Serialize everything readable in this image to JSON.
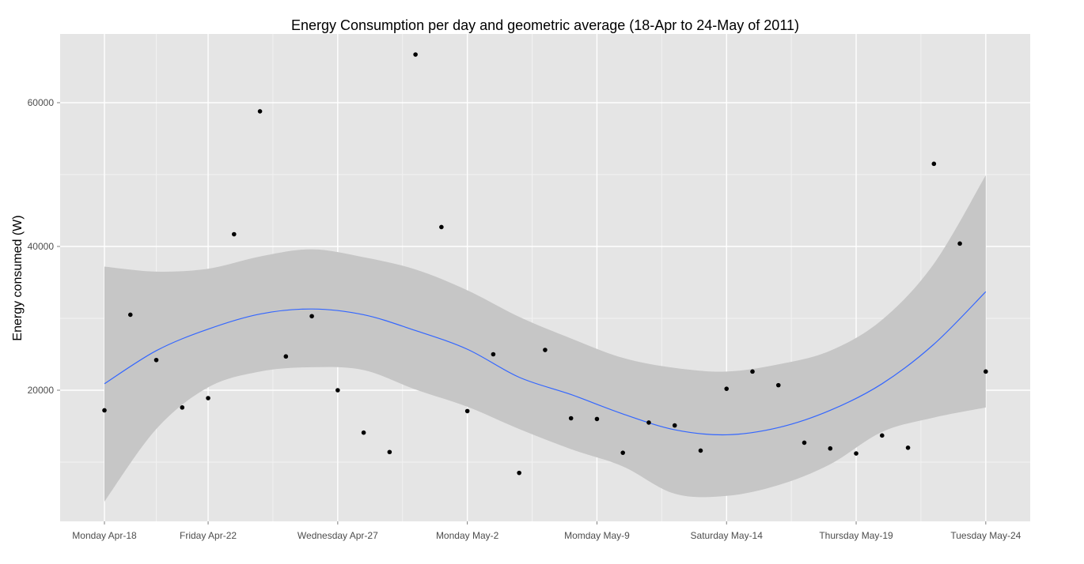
{
  "chart_data": {
    "type": "scatter",
    "title": "Energy Consumption per day and geometric average (18-Apr to 24-May of 2011)",
    "xlabel": "",
    "ylabel": "Energy consumed (W)",
    "x_tick_labels": [
      "Monday Apr-18",
      "Friday Apr-22",
      "Wednesday Apr-27",
      "Monday May-2",
      "Momday May-9",
      "Saturday May-14",
      "Thursday May-19",
      "Tuesday May-24"
    ],
    "x_tick_days": [
      0,
      4,
      9,
      14,
      19,
      24,
      29,
      34
    ],
    "y_tick_labels": [
      "20000",
      "40000",
      "60000"
    ],
    "y_ticks": [
      20000,
      40000,
      60000
    ],
    "ylim": [
      3000,
      69000
    ],
    "xlim": [
      -1.7,
      35.7
    ],
    "grid": true,
    "series": [
      {
        "type": "points",
        "values": [
          17200,
          30500,
          24200,
          17600,
          18900,
          41700,
          58800,
          24700,
          30300,
          20000,
          14100,
          11400,
          66700,
          42700,
          17100,
          25000,
          8500,
          25600,
          16100,
          16000,
          11300,
          15500,
          15100,
          11600,
          20200,
          22600,
          20700,
          12700,
          11900,
          11200,
          13700,
          12000,
          51500,
          40400,
          22600
        ]
      },
      {
        "type": "smooth",
        "x": [
          0,
          2,
          4,
          6,
          8,
          10,
          12,
          14,
          16,
          18,
          20,
          22,
          24,
          26,
          28,
          30,
          32,
          34
        ],
        "values": [
          20900,
          25500,
          28500,
          30600,
          31300,
          30500,
          28300,
          25700,
          21800,
          19400,
          16700,
          14500,
          13800,
          14800,
          17200,
          20900,
          26400,
          33700
        ],
        "lower": [
          4500,
          14600,
          20400,
          22600,
          23200,
          22800,
          20100,
          17700,
          14600,
          11800,
          9400,
          5600,
          5300,
          6800,
          9700,
          14200,
          16200,
          17600
        ],
        "upper": [
          37200,
          36500,
          36900,
          38600,
          39600,
          38500,
          36800,
          33900,
          30200,
          27200,
          24500,
          23100,
          22600,
          23600,
          25500,
          29800,
          37600,
          49900
        ]
      }
    ],
    "colors": {
      "panel": "#e5e5e5",
      "grid_major": "#ffffff",
      "grid_minor": "#f2f2f2",
      "ribbon": "#c6c6c6",
      "line": "#3366ff",
      "points": "#000000",
      "tick_text": "#4d4d4d"
    }
  }
}
